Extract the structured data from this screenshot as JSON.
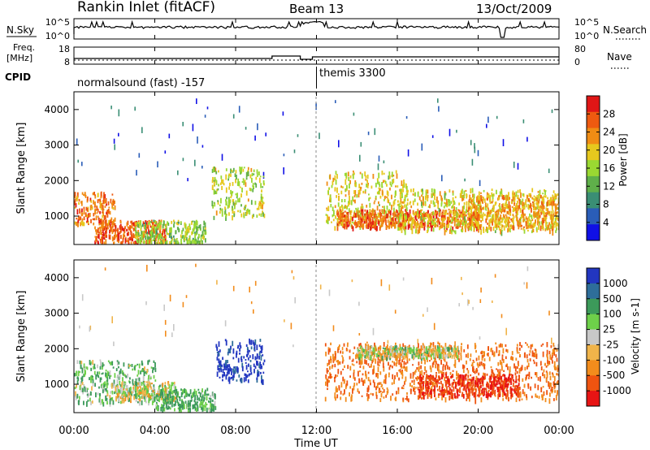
{
  "header": {
    "station": "Rankin Inlet (fitACF)",
    "beam": "Beam 13",
    "date": "13/Oct/2009"
  },
  "nsky_panel": {
    "left_label": "N.Sky",
    "left_ticks": [
      "10^5",
      "10^0"
    ],
    "right_ticks": [
      "10^5",
      "10^0"
    ],
    "right_label": "N.Search"
  },
  "freq_panel": {
    "left_label_line1": "Freq.",
    "left_label_line2": "[MHz]",
    "left_ticks": [
      "18",
      "8"
    ],
    "right_ticks": [
      "80",
      "0"
    ],
    "right_label": "Nave"
  },
  "cpid_panel": {
    "label": "CPID",
    "segments": [
      {
        "start_hour": 0,
        "end_hour": 12,
        "name": "normalsound (fast) -157"
      },
      {
        "start_hour": 12,
        "end_hour": 24,
        "name": "themis 3300"
      }
    ]
  },
  "time_axis": {
    "xlabel": "Time UT",
    "xlim": [
      0,
      24
    ],
    "ticks": [
      {
        "hour": 0,
        "label": "00:00"
      },
      {
        "hour": 4,
        "label": "04:00"
      },
      {
        "hour": 8,
        "label": "08:00"
      },
      {
        "hour": 12,
        "label": "12:00"
      },
      {
        "hour": 16,
        "label": "16:00"
      },
      {
        "hour": 20,
        "label": "20:00"
      },
      {
        "hour": 24,
        "label": "00:00"
      }
    ]
  },
  "colors": {
    "power_scale": [
      "#1010e6",
      "#2a5db8",
      "#3a8e74",
      "#5fb04a",
      "#9ad832",
      "#e6c81e",
      "#f08c14",
      "#ee5a10",
      "#e01616"
    ],
    "velocity_scale": [
      "#e81414",
      "#ef5410",
      "#f28c1c",
      "#f0b44a",
      "#c8c8c8",
      "#6ed04a",
      "#3c9a5a",
      "#2e6e9a",
      "#2236c0"
    ]
  },
  "chart_data": [
    {
      "type": "heatmap",
      "parameter": "Power",
      "xlabel": "",
      "ylabel": "Slant Range [km]",
      "xlim": [
        0,
        24
      ],
      "ylim": [
        200,
        4500
      ],
      "yticks": [
        "1000",
        "2000",
        "3000",
        "4000"
      ],
      "ytick_values": [
        1000,
        2000,
        3000,
        4000
      ],
      "colorbar": {
        "label": "Power [dB]",
        "ticks": [
          "28",
          "24",
          "20",
          "16",
          "12",
          "8",
          "4"
        ],
        "range": [
          0,
          30
        ]
      },
      "regions": [
        {
          "t": [
            0.0,
            2.0
          ],
          "r": [
            800,
            1700
          ],
          "value": 24
        },
        {
          "t": [
            1.0,
            4.5
          ],
          "r": [
            250,
            900
          ],
          "value": 26
        },
        {
          "t": [
            3.0,
            6.5
          ],
          "r": [
            250,
            900
          ],
          "value": 14
        },
        {
          "t": [
            6.8,
            9.4
          ],
          "r": [
            1000,
            2400
          ],
          "value": 16
        },
        {
          "t": [
            12.4,
            16.5
          ],
          "r": [
            700,
            2300
          ],
          "value": 18
        },
        {
          "t": [
            13.0,
            20.0
          ],
          "r": [
            700,
            1200
          ],
          "value": 25
        },
        {
          "t": [
            16.0,
            24.0
          ],
          "r": [
            600,
            1800
          ],
          "value": 18
        },
        {
          "t": [
            19.5,
            24.0
          ],
          "r": [
            700,
            1600
          ],
          "value": 22
        }
      ]
    },
    {
      "type": "heatmap",
      "parameter": "Velocity",
      "xlabel": "Time UT",
      "ylabel": "Slant Range [km]",
      "xlim": [
        0,
        24
      ],
      "ylim": [
        200,
        4500
      ],
      "yticks": [
        "1000",
        "2000",
        "3000",
        "4000"
      ],
      "ytick_values": [
        1000,
        2000,
        3000,
        4000
      ],
      "colorbar": {
        "label": "Velocity [m s-1]",
        "ticks": [
          "1000",
          "500",
          "100",
          "25",
          "-25",
          "-100",
          "-500",
          "-1000"
        ]
      },
      "regions": [
        {
          "t": [
            0.0,
            4.0
          ],
          "r": [
            500,
            1700
          ],
          "value": 100
        },
        {
          "t": [
            2.0,
            5.0
          ],
          "r": [
            600,
            1100
          ],
          "value": 0
        },
        {
          "t": [
            4.0,
            7.0
          ],
          "r": [
            300,
            900
          ],
          "value": 150
        },
        {
          "t": [
            7.0,
            9.4
          ],
          "r": [
            1100,
            2300
          ],
          "value": 900
        },
        {
          "t": [
            12.4,
            24.0
          ],
          "r": [
            600,
            2200
          ],
          "value": -400
        },
        {
          "t": [
            14.0,
            19.0
          ],
          "r": [
            1800,
            2100
          ],
          "value": 0
        },
        {
          "t": [
            17.0,
            22.0
          ],
          "r": [
            700,
            1300
          ],
          "value": -800
        }
      ]
    }
  ]
}
